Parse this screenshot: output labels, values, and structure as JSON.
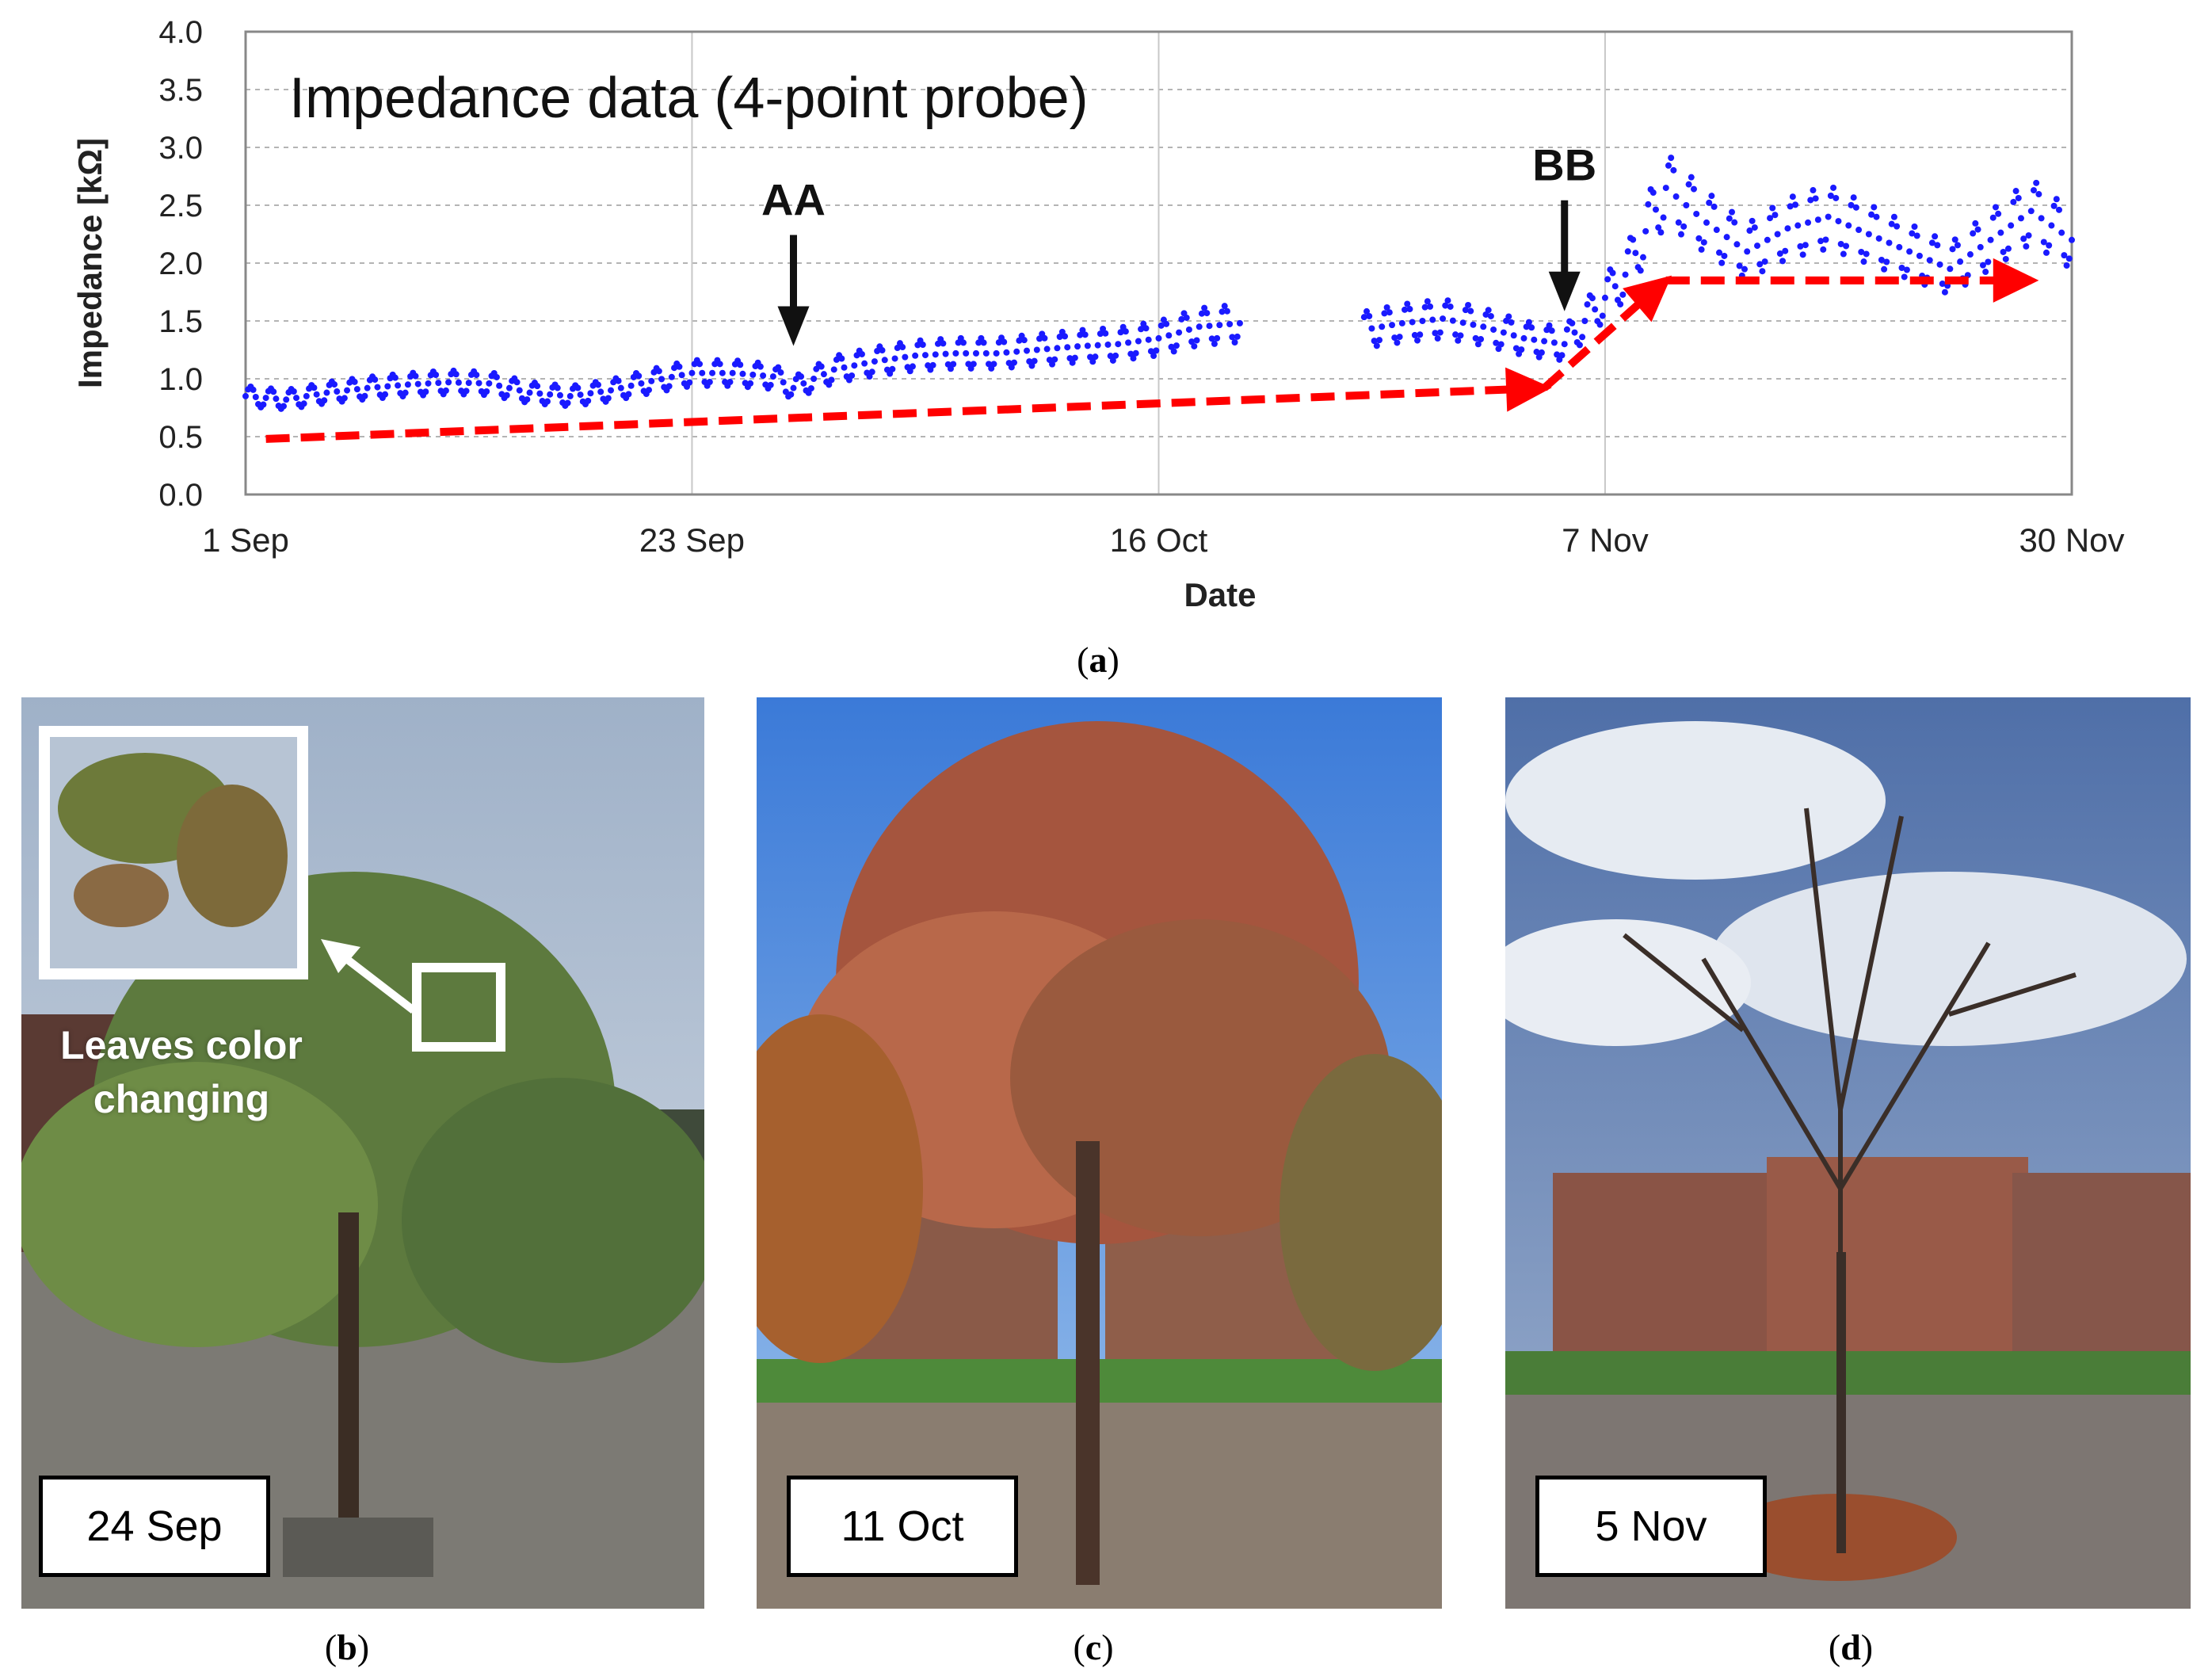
{
  "chart_data": {
    "type": "scatter",
    "title": "Impedance data (4-point probe)",
    "xlabel": "Date",
    "ylabel": "Impedance [kΩ]",
    "ylim": [
      0,
      4.0
    ],
    "yticks": [
      "0.0",
      "0.5",
      "1.0",
      "1.5",
      "2.0",
      "2.5",
      "3.0",
      "3.5",
      "4.0"
    ],
    "xlim": [
      "2022-09-01",
      "2022-11-30"
    ],
    "xticks": [
      {
        "date": "2022-09-01",
        "label": "1 Sep"
      },
      {
        "date": "2022-09-23",
        "label": "23 Sep"
      },
      {
        "date": "2022-10-16",
        "label": "16 Oct"
      },
      {
        "date": "2022-11-07",
        "label": "7 Nov"
      },
      {
        "date": "2022-11-30",
        "label": "30 Nov"
      }
    ],
    "grid": true,
    "series": [
      {
        "color": "#1a1aff",
        "x": [
          "2022-09-01",
          "2022-09-03",
          "2022-09-05",
          "2022-09-07",
          "2022-09-09",
          "2022-09-11",
          "2022-09-13",
          "2022-09-15",
          "2022-09-17",
          "2022-09-19",
          "2022-09-21",
          "2022-09-23",
          "2022-09-25",
          "2022-09-27",
          "2022-09-28",
          "2022-09-30",
          "2022-10-02",
          "2022-10-04",
          "2022-10-06",
          "2022-10-08",
          "2022-10-10",
          "2022-10-12",
          "2022-10-14",
          "2022-10-16",
          "2022-10-18",
          "2022-10-20",
          "2022-10-22",
          "2022-10-24",
          "2022-10-26",
          "2022-10-28",
          "2022-10-30",
          "2022-11-01",
          "2022-11-03",
          "2022-11-05",
          "2022-11-07",
          "2022-11-08",
          "2022-11-10",
          "2022-11-12",
          "2022-11-14",
          "2022-11-16",
          "2022-11-18",
          "2022-11-20",
          "2022-11-22",
          "2022-11-24",
          "2022-11-26",
          "2022-11-28",
          "2022-11-30"
        ],
        "y": [
          0.85,
          0.82,
          0.88,
          0.92,
          0.95,
          0.97,
          0.96,
          0.88,
          0.85,
          0.9,
          0.98,
          1.05,
          1.05,
          1.02,
          0.92,
          1.08,
          1.15,
          1.2,
          1.22,
          1.22,
          1.25,
          1.28,
          1.3,
          1.35,
          1.45,
          1.48,
          null,
          null,
          1.42,
          1.48,
          1.52,
          1.45,
          1.35,
          1.3,
          1.7,
          1.9,
          2.65,
          2.35,
          2.1,
          2.3,
          2.4,
          2.25,
          2.1,
          1.95,
          2.2,
          2.45,
          2.2
        ]
      }
    ],
    "trend": {
      "color": "#ff0000",
      "x": [
        "2022-09-02",
        "2022-11-04",
        "2022-11-09",
        "2022-11-10",
        "2022-11-28"
      ],
      "y": [
        0.48,
        0.92,
        1.7,
        1.85,
        1.85
      ]
    },
    "annotations": [
      {
        "text": "AA",
        "date": "2022-09-28",
        "y": 1.25
      },
      {
        "text": "BB",
        "date": "2022-11-05",
        "y": 1.55
      }
    ]
  },
  "captions": {
    "a": "a",
    "b": "b",
    "c": "c",
    "d": "d"
  },
  "photos": {
    "b": {
      "date": "24 Sep",
      "note_line1": "Leaves color",
      "note_line2": "changing"
    },
    "c": {
      "date": "11 Oct"
    },
    "d": {
      "date": "5 Nov"
    }
  }
}
